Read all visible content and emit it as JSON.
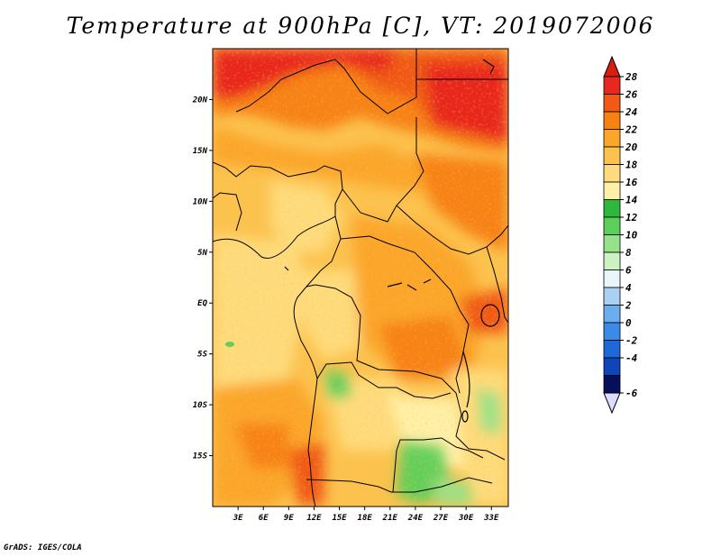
{
  "title": "Temperature at 900hPa [C], VT: 2019072006",
  "credit": "GrADS: IGES/COLA",
  "map": {
    "lat_labels": [
      {
        "text": "20N",
        "lat": 20
      },
      {
        "text": "15N",
        "lat": 15
      },
      {
        "text": "10N",
        "lat": 10
      },
      {
        "text": "5N",
        "lat": 5
      },
      {
        "text": "EQ",
        "lat": 0
      },
      {
        "text": "5S",
        "lat": -5
      },
      {
        "text": "10S",
        "lat": -10
      },
      {
        "text": "15S",
        "lat": -15
      }
    ],
    "lon_labels": [
      {
        "text": "3E",
        "lon": 3
      },
      {
        "text": "6E",
        "lon": 6
      },
      {
        "text": "9E",
        "lon": 9
      },
      {
        "text": "12E",
        "lon": 12
      },
      {
        "text": "15E",
        "lon": 15
      },
      {
        "text": "18E",
        "lon": 18
      },
      {
        "text": "21E",
        "lon": 21
      },
      {
        "text": "24E",
        "lon": 24
      },
      {
        "text": "27E",
        "lon": 27
      },
      {
        "text": "30E",
        "lon": 30
      },
      {
        "text": "33E",
        "lon": 33
      }
    ],
    "lon_range": [
      0,
      35
    ],
    "lat_range": [
      -20,
      25
    ]
  },
  "colorbar": {
    "levels": [
      {
        "label": "28",
        "color": "#e8281e"
      },
      {
        "label": "26",
        "color": "#f05a14"
      },
      {
        "label": "24",
        "color": "#f78214"
      },
      {
        "label": "22",
        "color": "#fba62a"
      },
      {
        "label": "20",
        "color": "#fcc24e"
      },
      {
        "label": "18",
        "color": "#fedb7c"
      },
      {
        "label": "16",
        "color": "#fff0a8"
      },
      {
        "label": "14",
        "color": "#2fb83e"
      },
      {
        "label": "12",
        "color": "#5ccf5a"
      },
      {
        "label": "10",
        "color": "#96e28a"
      },
      {
        "label": "8",
        "color": "#cbf2c0"
      },
      {
        "label": "6",
        "color": "#eaf5f7"
      },
      {
        "label": "4",
        "color": "#aad0f4"
      },
      {
        "label": "2",
        "color": "#6aaef0"
      },
      {
        "label": "0",
        "color": "#3a8be8"
      },
      {
        "label": "-2",
        "color": "#1e68d8"
      },
      {
        "label": "-4",
        "color": "#0f45b8"
      },
      {
        "label": "-6",
        "color": "#0a2a8c"
      }
    ],
    "bottom_color": "#06105a",
    "top_arrow_color": "#d81e10",
    "bottom_arrow_color": "#dcdcfc"
  }
}
